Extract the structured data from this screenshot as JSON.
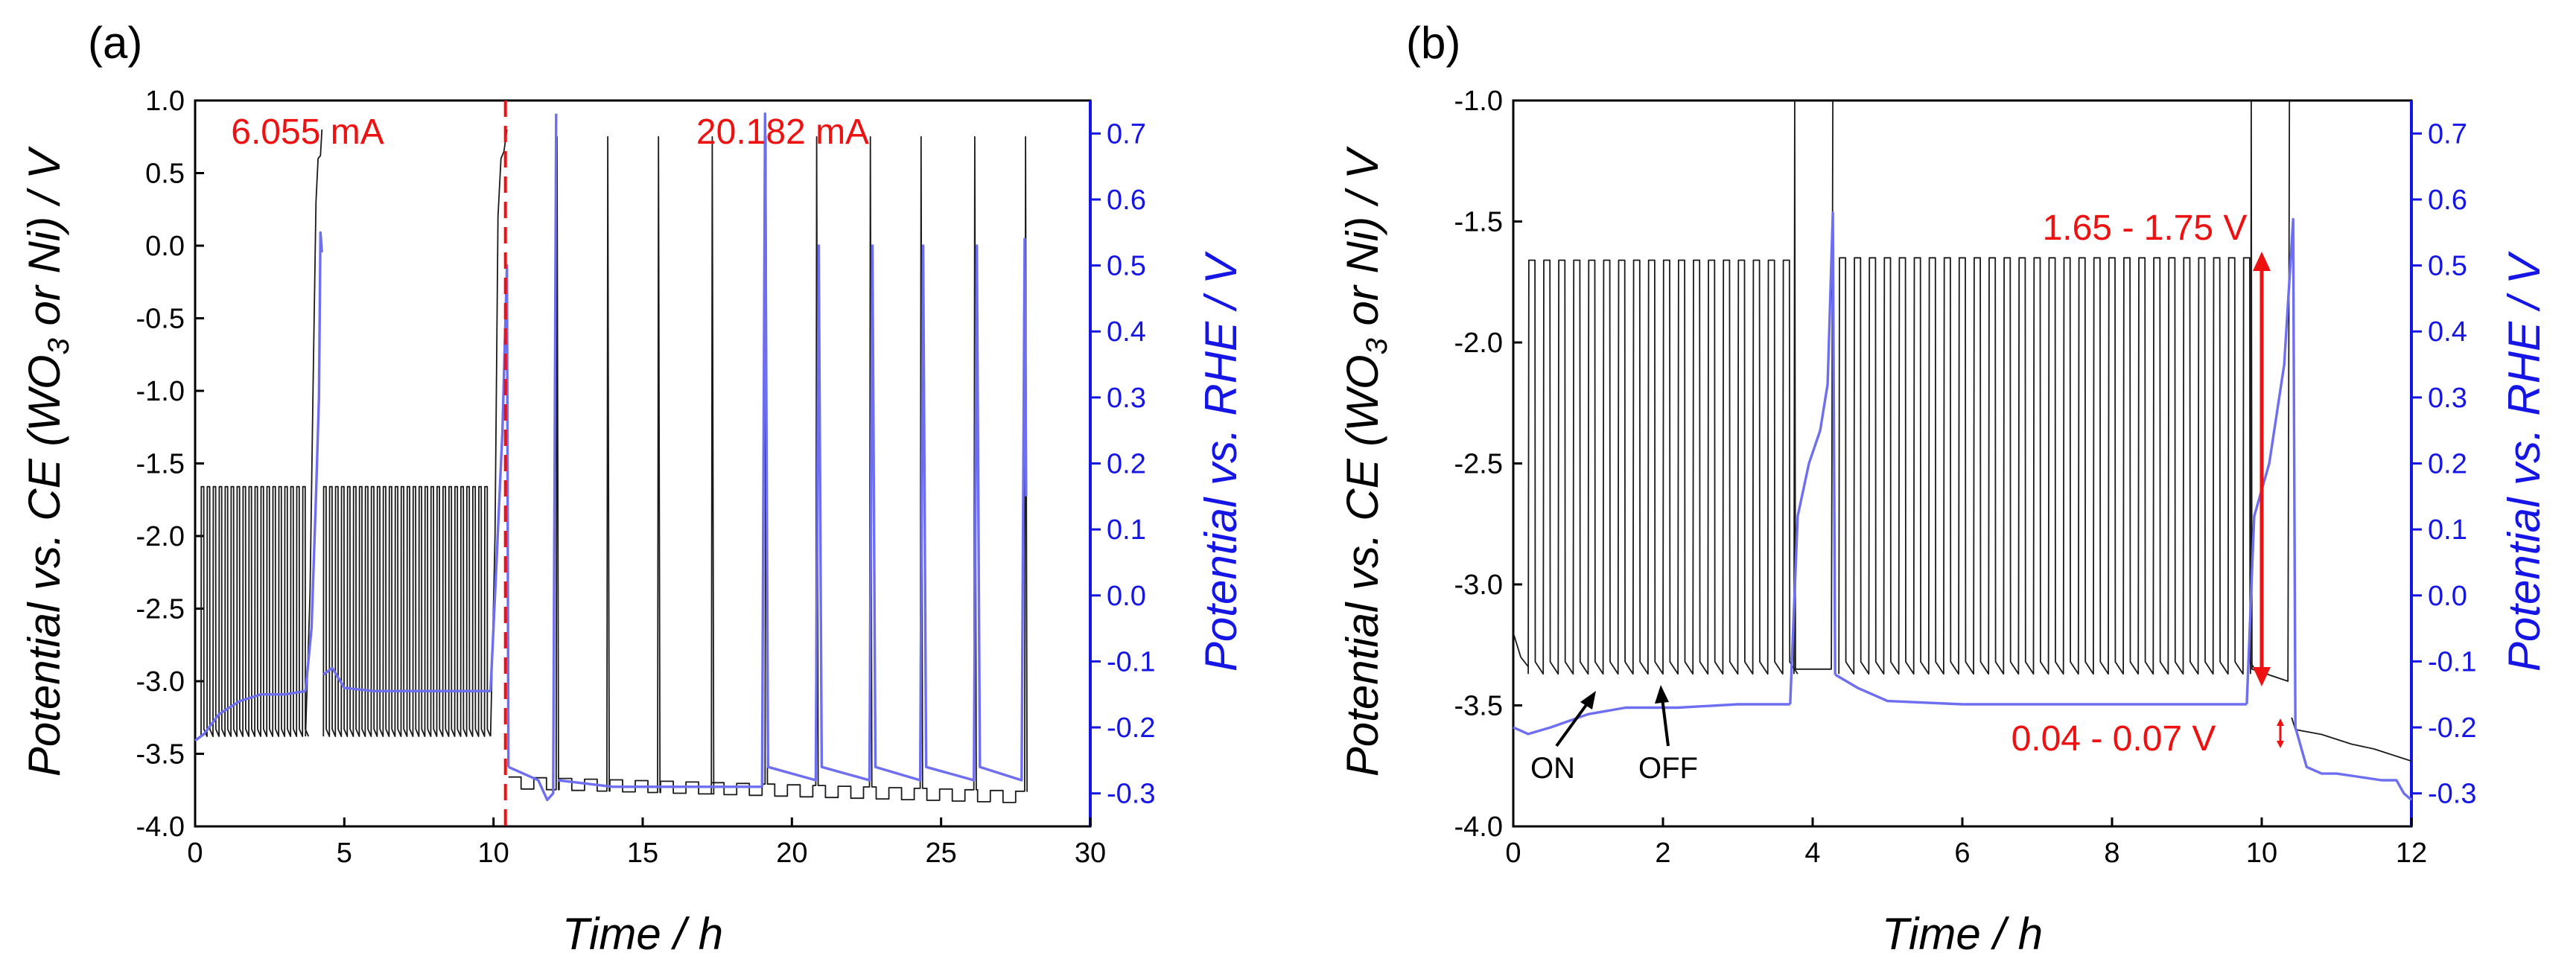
{
  "colors": {
    "black_trace": "#1a1a1a",
    "blue_trace": "#6e6ef0",
    "blue_axis": "#1515e6",
    "red": "#ee1111"
  },
  "chart_data": [
    {
      "type": "line",
      "panel_label": "(a)",
      "xlabel": "Time / h",
      "ylabel_left": "Potential vs. CE (WO3 or Ni) / V",
      "ylabel_right": "Potential vs. RHE / V",
      "xlim": [
        0,
        30
      ],
      "ylim_left": [
        -4.0,
        1.0
      ],
      "ylim_right": [
        -0.35,
        0.75
      ],
      "x_ticks": [
        "0",
        "5",
        "10",
        "15",
        "20",
        "25",
        "30"
      ],
      "y_ticks_left": [
        "-4.0",
        "-3.5",
        "-3.0",
        "-2.5",
        "-2.0",
        "-1.5",
        "-1.0",
        "-0.5",
        "0.0",
        "0.5",
        "1.0"
      ],
      "y_ticks_right": [
        "-0.3",
        "-0.2",
        "-0.1",
        "0.0",
        "0.1",
        "0.2",
        "0.3",
        "0.4",
        "0.5",
        "0.6",
        "0.7"
      ],
      "annotations": [
        {
          "text": "6.055 mA",
          "x": 5.0,
          "y": 0.8
        },
        {
          "text": "20.182 mA",
          "x": 16.2,
          "y": 0.8
        }
      ],
      "divider_x": 10.4,
      "series": [
        {
          "name": "Potential vs. CE",
          "axis": "left",
          "segments": [
            {
              "kind": "cycles",
              "x_start": 0.2,
              "x_end": 3.7,
              "period": 0.2,
              "on_value": -3.38,
              "off_value": -1.66,
              "drift": 0.0
            },
            {
              "kind": "spike",
              "x_points": [
                3.7,
                3.85,
                3.95,
                4.05,
                4.12,
                4.2,
                4.25
              ],
              "y_points": [
                -3.38,
                -2.4,
                -1.0,
                0.3,
                0.6,
                0.62,
                0.8
              ]
            },
            {
              "kind": "cycles",
              "x_start": 4.3,
              "x_end": 9.9,
              "period": 0.2,
              "on_value": -3.38,
              "off_value": -1.66,
              "drift": 0.0
            },
            {
              "kind": "spike",
              "x_points": [
                9.9,
                10.05,
                10.15,
                10.25,
                10.35,
                10.45
              ],
              "y_points": [
                -3.38,
                -2.0,
                0.2,
                0.6,
                0.65,
                0.8
              ]
            },
            {
              "kind": "steps",
              "x_start": 10.5,
              "x_end": 27.9,
              "period": 0.85,
              "high": -3.66,
              "low": -3.74,
              "drift": -0.1,
              "spike_times": [
                12.1,
                13.8,
                15.5,
                17.3,
                19.1,
                20.8,
                22.6,
                24.3,
                26.1,
                27.8
              ],
              "spike_top": 0.75
            }
          ]
        },
        {
          "name": "Potential vs. RHE",
          "axis": "right",
          "segments": [
            {
              "kind": "poly",
              "x_points": [
                0,
                0.3,
                0.8,
                1.5,
                2.2,
                3.0,
                3.7
              ],
              "y_points": [
                -0.22,
                -0.21,
                -0.18,
                -0.16,
                -0.15,
                -0.15,
                -0.145
              ]
            },
            {
              "kind": "spike",
              "x_points": [
                3.7,
                3.9,
                4.05,
                4.15,
                4.2,
                4.25
              ],
              "y_points": [
                -0.145,
                -0.05,
                0.15,
                0.3,
                0.55,
                0.52
              ]
            },
            {
              "kind": "poly",
              "x_points": [
                4.3,
                4.6,
                5.0,
                6.0,
                8.0,
                9.9
              ],
              "y_points": [
                -0.12,
                -0.11,
                -0.14,
                -0.145,
                -0.145,
                -0.145
              ]
            },
            {
              "kind": "spike",
              "x_points": [
                9.9,
                10.1,
                10.3,
                10.45,
                10.5
              ],
              "y_points": [
                -0.145,
                0.05,
                0.25,
                0.5,
                -0.26
              ]
            },
            {
              "kind": "poly",
              "x_points": [
                10.5,
                11.0,
                11.5,
                11.7,
                11.8,
                12.0,
                12.1
              ],
              "y_points": [
                -0.26,
                -0.27,
                -0.28,
                -0.3,
                -0.31,
                -0.3,
                0.73
              ]
            },
            {
              "kind": "poly",
              "x_points": [
                12.15,
                14.0,
                16.0,
                19.0
              ],
              "y_points": [
                -0.28,
                -0.29,
                -0.29,
                -0.29
              ]
            },
            {
              "kind": "poly",
              "x_points": [
                19.0,
                19.1,
                19.2,
                20.8,
                20.9,
                21.0,
                22.6,
                22.7,
                22.8,
                24.3,
                24.4,
                24.5,
                26.1,
                26.2,
                26.3,
                27.7,
                27.8,
                27.85
              ],
              "y_points": [
                -0.29,
                0.73,
                -0.26,
                -0.28,
                0.53,
                -0.26,
                -0.28,
                0.53,
                -0.26,
                -0.28,
                0.53,
                -0.26,
                -0.28,
                0.53,
                -0.26,
                -0.28,
                0.54,
                0.15
              ]
            }
          ]
        }
      ]
    },
    {
      "type": "line",
      "panel_label": "(b)",
      "xlabel": "Time / h",
      "ylabel_left": "Potential vs. CE (WO3 or Ni) / V",
      "ylabel_right": "Potential vs. RHE / V",
      "xlim": [
        0,
        12
      ],
      "ylim_left": [
        -4.0,
        -1.0
      ],
      "ylim_right": [
        -0.35,
        0.75
      ],
      "x_ticks": [
        "0",
        "2",
        "4",
        "6",
        "8",
        "10",
        "12"
      ],
      "y_ticks_left": [
        "-4.0",
        "-3.5",
        "-3.0",
        "-2.5",
        "-2.0",
        "-1.5",
        "-1.0"
      ],
      "y_ticks_right": [
        "-0.3",
        "-0.2",
        "-0.1",
        "0.0",
        "0.1",
        "0.2",
        "0.3",
        "0.4",
        "0.5",
        "0.6",
        "0.7"
      ],
      "annotations": [
        {
          "text": "1.65 - 1.75 V",
          "x": 8.4,
          "y": -1.85
        },
        {
          "text": "0.04 - 0.07 V",
          "x": 8.4,
          "y": -3.6
        },
        {
          "text": "ON",
          "x": 1.05,
          "y": -3.55
        },
        {
          "text": "OFF",
          "x": 2.05,
          "y": -3.55
        }
      ],
      "series": [
        {
          "name": "Potential vs. CE",
          "axis": "left",
          "segments": [
            {
              "kind": "poly",
              "x_points": [
                0,
                0.1,
                0.2
              ],
              "y_points": [
                -3.2,
                -3.3,
                -3.34
              ]
            },
            {
              "kind": "cycles",
              "x_start": 0.2,
              "x_end": 3.75,
              "period": 0.2,
              "on_value": -3.37,
              "off_value": -1.66,
              "drift": 0.0
            },
            {
              "kind": "spike",
              "x_points": [
                3.75,
                3.76,
                3.77,
                4.25,
                4.27
              ],
              "y_points": [
                -3.37,
                -1.0,
                -3.35,
                -3.35,
                -1.0
              ]
            },
            {
              "kind": "cycles",
              "x_start": 4.35,
              "x_end": 9.85,
              "period": 0.2,
              "on_value": -3.37,
              "off_value": -1.65,
              "drift": 0.0
            },
            {
              "kind": "spike",
              "x_points": [
                9.85,
                9.86,
                9.87,
                10.35,
                10.37
              ],
              "y_points": [
                -3.37,
                -1.0,
                -3.35,
                -3.4,
                -1.0
              ]
            },
            {
              "kind": "poly",
              "x_points": [
                10.4,
                10.45,
                10.8,
                11.0,
                11.2,
                11.5,
                11.9,
                12.0
              ],
              "y_points": [
                -3.55,
                -3.6,
                -3.62,
                -3.64,
                -3.66,
                -3.68,
                -3.72,
                -3.73
              ]
            }
          ]
        },
        {
          "name": "Potential vs. RHE",
          "axis": "right",
          "segments": [
            {
              "kind": "poly",
              "x_points": [
                0,
                0.2,
                0.5,
                1.0,
                1.5,
                2.2,
                3.0,
                3.7
              ],
              "y_points": [
                -0.2,
                -0.21,
                -0.2,
                -0.18,
                -0.17,
                -0.17,
                -0.165,
                -0.165
              ]
            },
            {
              "kind": "spike",
              "x_points": [
                3.7,
                3.8,
                3.95,
                4.1,
                4.2,
                4.27,
                4.3
              ],
              "y_points": [
                -0.165,
                0.12,
                0.2,
                0.25,
                0.32,
                0.58,
                -0.12
              ]
            },
            {
              "kind": "poly",
              "x_points": [
                4.3,
                4.6,
                5.0,
                6.0,
                7.0,
                8.0,
                9.0,
                9.8
              ],
              "y_points": [
                -0.12,
                -0.14,
                -0.16,
                -0.165,
                -0.165,
                -0.165,
                -0.165,
                -0.165
              ]
            },
            {
              "kind": "spike",
              "x_points": [
                9.8,
                9.9,
                10.1,
                10.3,
                10.42,
                10.45
              ],
              "y_points": [
                -0.165,
                0.12,
                0.2,
                0.35,
                0.57,
                -0.2
              ]
            },
            {
              "kind": "poly",
              "x_points": [
                10.45,
                10.6,
                10.8,
                11.0,
                11.3,
                11.6,
                11.8,
                11.9,
                12.0
              ],
              "y_points": [
                -0.2,
                -0.26,
                -0.27,
                -0.27,
                -0.275,
                -0.28,
                -0.28,
                -0.3,
                -0.31
              ]
            }
          ]
        }
      ]
    }
  ]
}
